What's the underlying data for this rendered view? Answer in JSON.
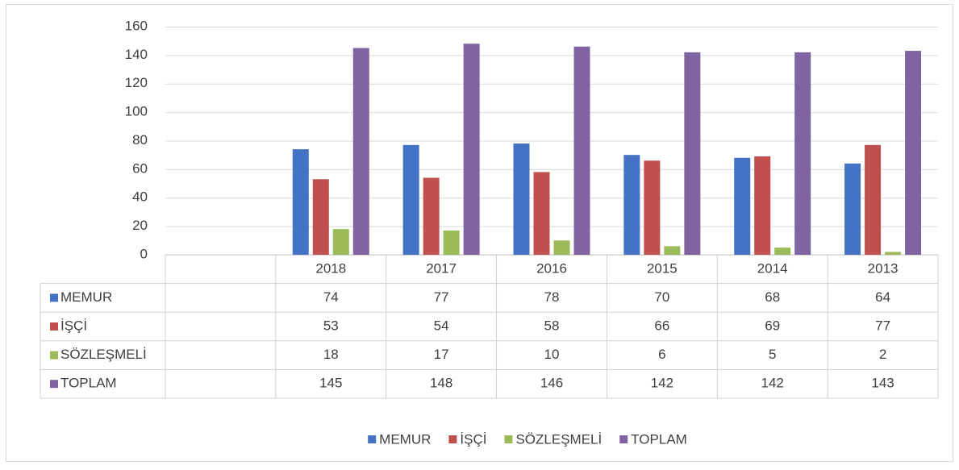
{
  "chart_data": {
    "type": "bar",
    "categories": [
      null,
      "2018",
      "2017",
      "2016",
      "2015",
      "2014",
      "2013"
    ],
    "series": [
      {
        "name": "MEMUR",
        "color": "#4472c4",
        "values": [
          null,
          74,
          77,
          78,
          70,
          68,
          64
        ]
      },
      {
        "name": "İŞÇİ",
        "color": "#c0504d",
        "values": [
          null,
          53,
          54,
          58,
          66,
          69,
          77
        ]
      },
      {
        "name": "SÖZLEŞMELİ",
        "color": "#9bbb59",
        "values": [
          null,
          18,
          17,
          10,
          6,
          5,
          2
        ]
      },
      {
        "name": "TOPLAM",
        "color": "#8064a2",
        "values": [
          null,
          145,
          148,
          146,
          142,
          142,
          143
        ]
      }
    ],
    "ylim": [
      0,
      160
    ],
    "yticks": [
      0,
      20,
      40,
      60,
      80,
      100,
      120,
      140,
      160
    ],
    "grid": true,
    "legend": "bottom"
  }
}
